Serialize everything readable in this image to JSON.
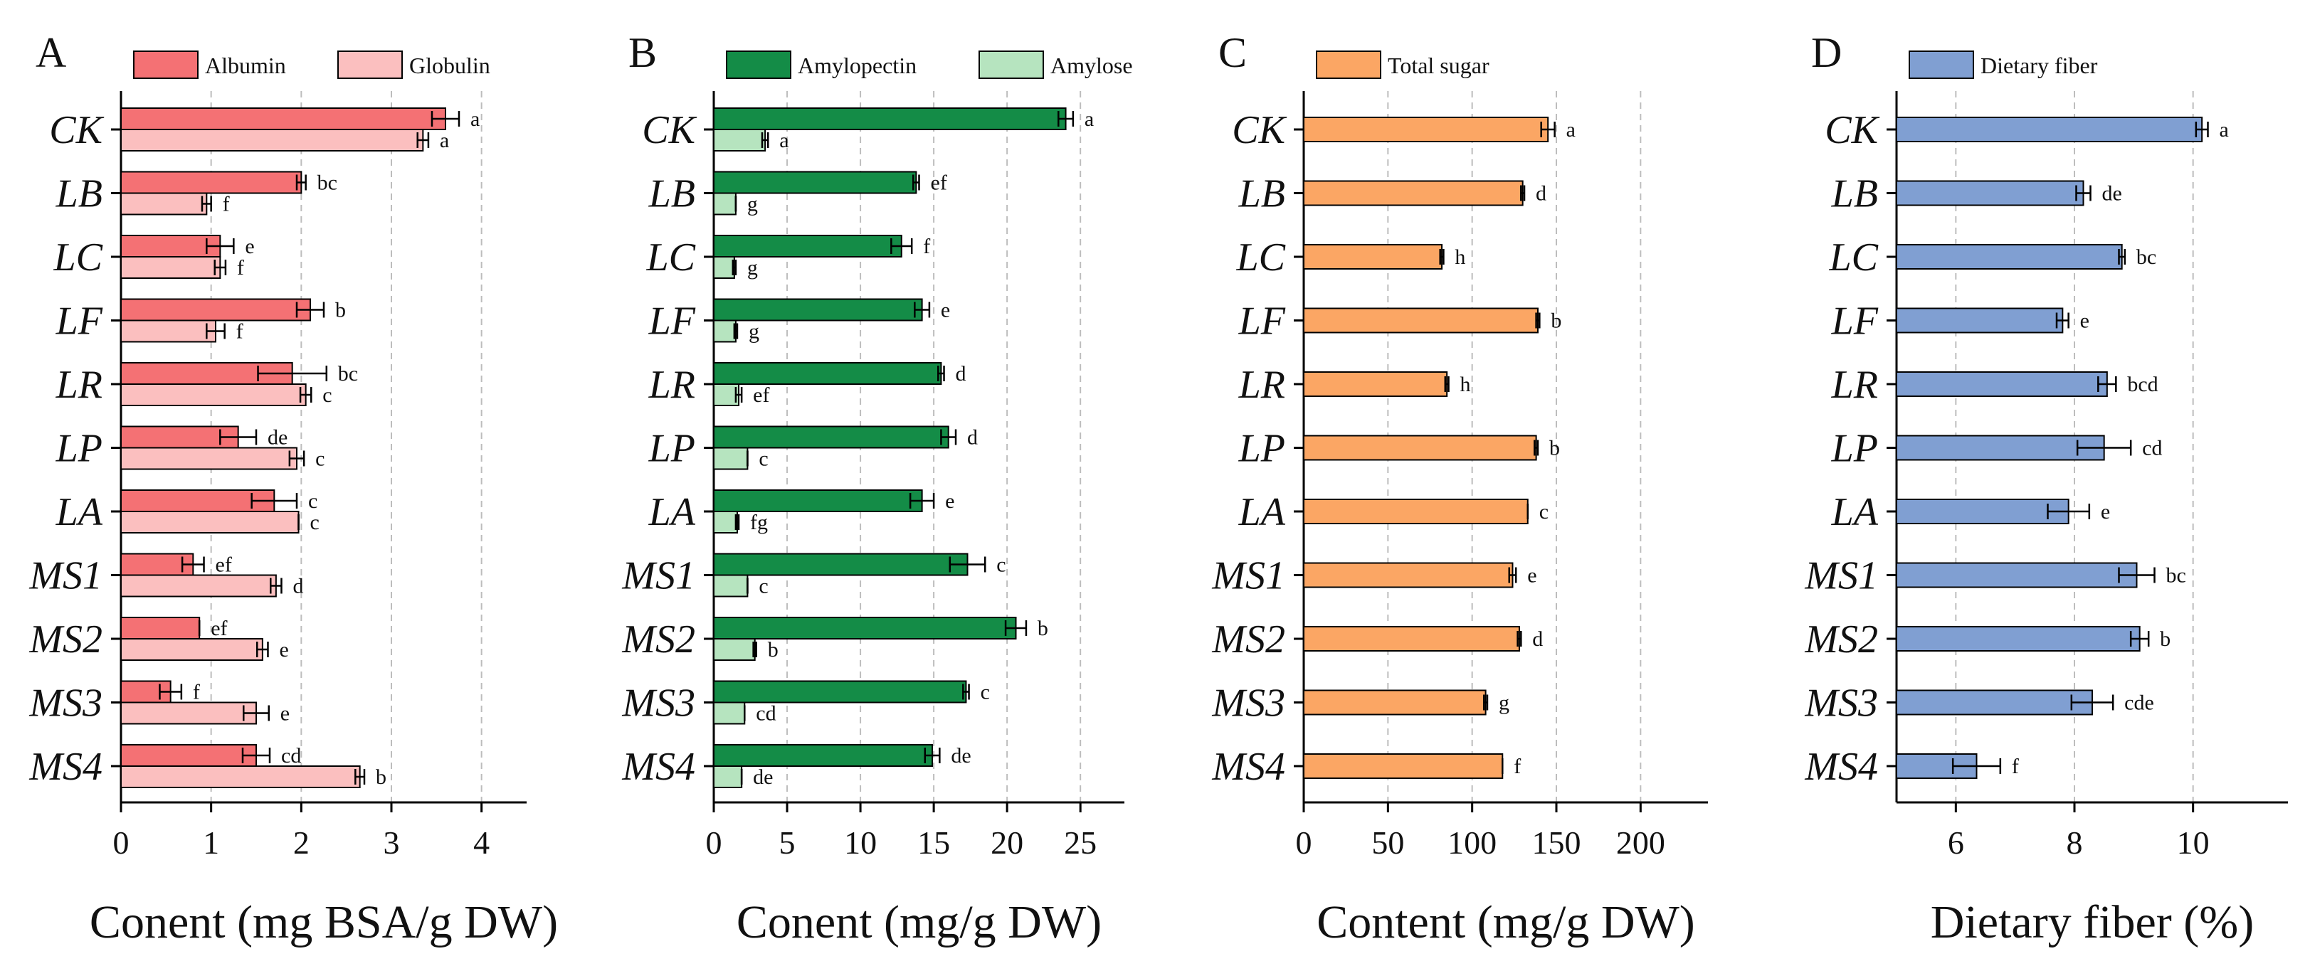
{
  "figure": "Four-panel horizontal bar chart of grain composition",
  "chart_data": [
    {
      "panel": "A",
      "type": "bar",
      "orientation": "horizontal",
      "categories": [
        "CK",
        "LB",
        "LC",
        "LF",
        "LR",
        "LP",
        "LA",
        "MS1",
        "MS2",
        "MS3",
        "MS4"
      ],
      "series": [
        {
          "name": "Albumin",
          "color": "#f47174",
          "values": [
            3.6,
            2.0,
            1.1,
            2.1,
            1.9,
            1.3,
            1.7,
            0.8,
            0.87,
            0.55,
            1.5
          ],
          "errors": [
            0.15,
            0.05,
            0.15,
            0.15,
            0.38,
            0.2,
            0.25,
            0.12,
            0.0,
            0.12,
            0.15
          ],
          "significance": [
            "a",
            "bc",
            "e",
            "b",
            "bc",
            "de",
            "c",
            "ef",
            "ef",
            "f",
            "cd"
          ]
        },
        {
          "name": "Globulin",
          "color": "#fbbfbf",
          "values": [
            3.35,
            0.95,
            1.1,
            1.05,
            2.05,
            1.95,
            1.97,
            1.72,
            1.57,
            1.5,
            2.65
          ],
          "errors": [
            0.06,
            0.05,
            0.06,
            0.1,
            0.06,
            0.08,
            0.0,
            0.06,
            0.06,
            0.14,
            0.05
          ],
          "significance": [
            "a",
            "f",
            "f",
            "f",
            "c",
            "c",
            "c",
            "d",
            "e",
            "e",
            "b"
          ]
        }
      ],
      "xlabel": "Conent (mg BSA/g DW)",
      "xlim": [
        0,
        4.5
      ],
      "xticks": [
        0,
        1,
        2,
        3,
        4
      ],
      "grid": "vertical dashed",
      "legend": "top"
    },
    {
      "panel": "B",
      "type": "bar",
      "orientation": "horizontal",
      "categories": [
        "CK",
        "LB",
        "LC",
        "LF",
        "LR",
        "LP",
        "LA",
        "MS1",
        "MS2",
        "MS3",
        "MS4"
      ],
      "series": [
        {
          "name": "Amylopectin",
          "color": "#148c47",
          "values": [
            24.0,
            13.8,
            12.8,
            14.2,
            15.5,
            16.0,
            14.2,
            17.3,
            20.6,
            17.2,
            14.9
          ],
          "errors": [
            0.5,
            0.2,
            0.7,
            0.5,
            0.2,
            0.5,
            0.8,
            1.2,
            0.7,
            0.2,
            0.5
          ],
          "significance": [
            "a",
            "ef",
            "f",
            "e",
            "d",
            "d",
            "e",
            "c",
            "b",
            "c",
            "de"
          ]
        },
        {
          "name": "Amylose",
          "color": "#b6e4bf",
          "values": [
            3.5,
            1.5,
            1.4,
            1.5,
            1.7,
            2.3,
            1.6,
            2.3,
            2.8,
            2.1,
            1.9
          ],
          "errors": [
            0.2,
            0.0,
            0.1,
            0.1,
            0.2,
            0.0,
            0.1,
            0.0,
            0.1,
            0.0,
            0.0
          ],
          "significance": [
            "a",
            "g",
            "g",
            "g",
            "ef",
            "c",
            "fg",
            "c",
            "b",
            "cd",
            "de"
          ]
        }
      ],
      "xlabel": "Conent (mg/g DW)",
      "xlim": [
        0,
        28
      ],
      "xticks": [
        0,
        5,
        10,
        15,
        20,
        25
      ],
      "grid": "vertical dashed",
      "legend": "top"
    },
    {
      "panel": "C",
      "type": "bar",
      "orientation": "horizontal",
      "categories": [
        "CK",
        "LB",
        "LC",
        "LF",
        "LR",
        "LP",
        "LA",
        "MS1",
        "MS2",
        "MS3",
        "MS4"
      ],
      "series": [
        {
          "name": "Total sugar",
          "color": "#fba664",
          "values": [
            145,
            130,
            82,
            139,
            85,
            138,
            133,
            124,
            128,
            108,
            118
          ],
          "errors": [
            4,
            1,
            1,
            1,
            1,
            1,
            0,
            2,
            1,
            1,
            0
          ],
          "significance": [
            "a",
            "d",
            "h",
            "b",
            "h",
            "b",
            "c",
            "e",
            "d",
            "g",
            "f"
          ]
        }
      ],
      "xlabel": "Content (mg/g DW)",
      "xlim": [
        0,
        240
      ],
      "xticks": [
        0,
        50,
        100,
        150,
        200
      ],
      "grid": "vertical dashed",
      "legend": "top"
    },
    {
      "panel": "D",
      "type": "bar",
      "orientation": "horizontal",
      "categories": [
        "CK",
        "LB",
        "LC",
        "LF",
        "LR",
        "LP",
        "LA",
        "MS1",
        "MS2",
        "MS3",
        "MS4"
      ],
      "series": [
        {
          "name": "Dietary fiber",
          "color": "#809fd2",
          "values": [
            10.15,
            8.15,
            8.8,
            7.8,
            8.55,
            8.5,
            7.9,
            9.05,
            9.1,
            8.3,
            6.35
          ],
          "errors": [
            0.1,
            0.12,
            0.05,
            0.1,
            0.15,
            0.45,
            0.35,
            0.3,
            0.15,
            0.35,
            0.4
          ],
          "significance": [
            "a",
            "de",
            "bc",
            "e",
            "bcd",
            "cd",
            "e",
            "bc",
            "b",
            "cde",
            "f"
          ]
        }
      ],
      "xlabel": "Dietary fiber (%)",
      "xlim": [
        5,
        11.6
      ],
      "xticks": [
        6,
        8,
        10
      ],
      "grid": "vertical dashed",
      "legend": "top"
    }
  ]
}
